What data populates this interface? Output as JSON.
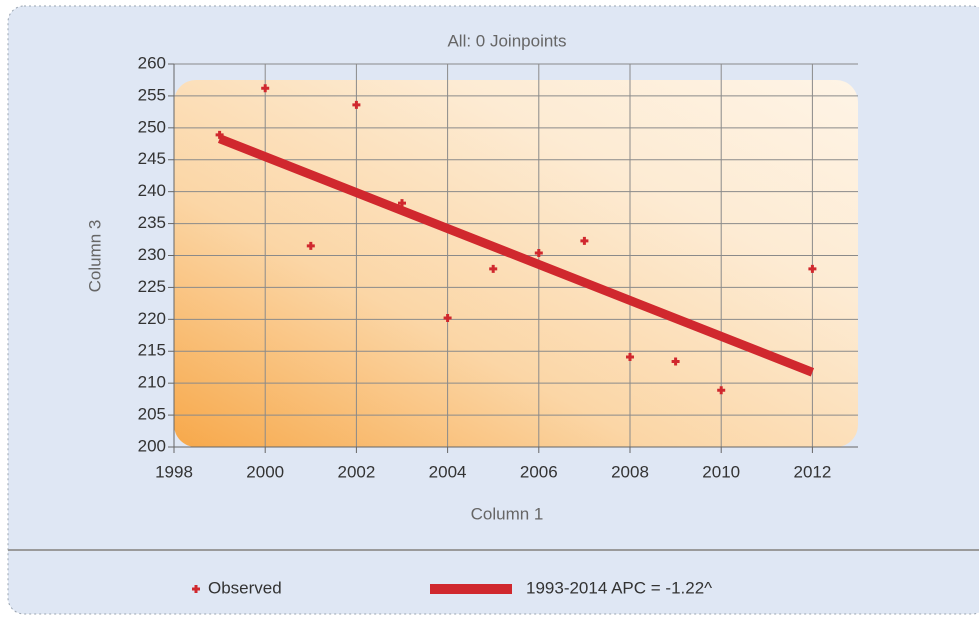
{
  "chart_data": {
    "type": "scatter",
    "title": "All: 0 Joinpoints",
    "x_label": "Column 1",
    "y_label": "Column 3",
    "xlim": [
      1998,
      2013
    ],
    "xticks": [
      1998,
      2000,
      2002,
      2004,
      2006,
      2008,
      2010,
      2012
    ],
    "ylim": [
      200,
      260
    ],
    "yticks": [
      200,
      205,
      210,
      215,
      220,
      225,
      230,
      235,
      240,
      245,
      250,
      255,
      260
    ],
    "grid": true,
    "series": [
      {
        "name": "Observed",
        "type": "scatter",
        "color": "#d0282e",
        "x": [
          1999,
          2000,
          2001,
          2002,
          2003,
          2004,
          2005,
          2006,
          2007,
          2008,
          2009,
          2010,
          2012
        ],
        "values": [
          248.9,
          256.2,
          231.5,
          253.6,
          238.2,
          220.2,
          227.9,
          230.4,
          232.3,
          214.1,
          213.4,
          208.9,
          227.9
        ]
      },
      {
        "name": "1993-2014 APC = -1.22^",
        "type": "line",
        "color": "#d0282e",
        "x": [
          1999,
          2012
        ],
        "values": [
          248.3,
          211.7
        ]
      }
    ]
  }
}
